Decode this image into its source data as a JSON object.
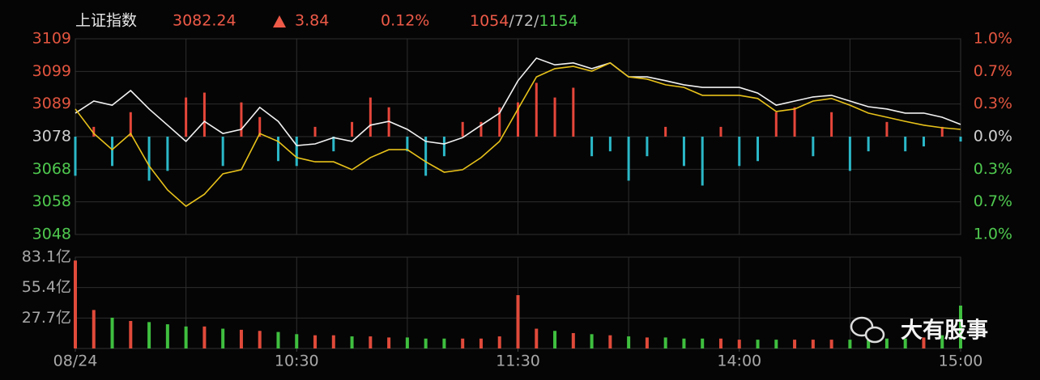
{
  "header": {
    "name": "上证指数",
    "price": 3082.24,
    "change": 3.84,
    "change_pct": "0.12%",
    "breadth": [
      "1054",
      "72",
      "1154"
    ],
    "separator": "/"
  },
  "watermark": "大有股事",
  "chart_data": [
    {
      "type": "line",
      "x": [
        0,
        5,
        10,
        15,
        20,
        25,
        30,
        35,
        40,
        45,
        50,
        55,
        60,
        65,
        70,
        75,
        80,
        85,
        90,
        95,
        100,
        105,
        110,
        115,
        120,
        125,
        130,
        135,
        140,
        145,
        150,
        155,
        160,
        165,
        170,
        175,
        180,
        185,
        190,
        195,
        200,
        205,
        210,
        215,
        220,
        225,
        230,
        235,
        240
      ],
      "xlim": [
        0,
        240
      ],
      "ylim": [
        3047.62,
        3109.18
      ],
      "yticks": [
        {
          "value": 3109.18,
          "label": "3109"
        },
        {
          "value": 3098.92,
          "label": "3099"
        },
        {
          "value": 3088.66,
          "label": "3089"
        },
        {
          "value": 3078.4,
          "label": "3078"
        },
        {
          "value": 3068.14,
          "label": "3068"
        },
        {
          "value": 3057.88,
          "label": "3058"
        },
        {
          "value": 3047.62,
          "label": "3048"
        }
      ],
      "y2lim": [
        -1,
        1
      ],
      "y2ticks": [
        {
          "value": 1,
          "label": "1.0%"
        },
        {
          "value": 0.667,
          "label": "0.7%"
        },
        {
          "value": 0.333,
          "label": "0.3%"
        },
        {
          "value": 0,
          "label": "0.0%"
        },
        {
          "value": -0.333,
          "label": "0.3%"
        },
        {
          "value": -0.667,
          "label": "0.7%"
        },
        {
          "value": -1,
          "label": "1.0%"
        }
      ],
      "grid": true,
      "series": [
        {
          "color": "#f2f2f2",
          "values": [
            3085.8,
            3089.6,
            3088.3,
            3092.9,
            3087.1,
            3082.0,
            3076.9,
            3083.2,
            3079.4,
            3080.7,
            3087.6,
            3083.2,
            3075.6,
            3076.1,
            3078.1,
            3076.9,
            3082.0,
            3083.2,
            3080.7,
            3076.9,
            3076.1,
            3078.1,
            3082.0,
            3085.8,
            3096.0,
            3103.1,
            3101.0,
            3101.6,
            3099.8,
            3101.6,
            3097.2,
            3097.2,
            3096.0,
            3094.7,
            3093.9,
            3093.9,
            3093.9,
            3092.1,
            3088.3,
            3089.6,
            3090.9,
            3091.4,
            3089.6,
            3087.8,
            3087.1,
            3085.8,
            3085.8,
            3084.5,
            3082.24
          ]
        },
        {
          "color": "#e8c21a",
          "values": [
            3087.1,
            3079.4,
            3074.3,
            3079.4,
            3069.2,
            3061.6,
            3056.5,
            3060.3,
            3066.7,
            3068.0,
            3079.4,
            3076.9,
            3071.8,
            3070.5,
            3070.5,
            3068.0,
            3071.8,
            3074.3,
            3074.3,
            3070.5,
            3067.2,
            3068.0,
            3071.8,
            3076.9,
            3087.1,
            3097.2,
            3099.8,
            3100.5,
            3099.0,
            3101.6,
            3097.2,
            3096.5,
            3094.7,
            3093.9,
            3091.4,
            3091.4,
            3091.4,
            3090.4,
            3086.3,
            3087.1,
            3089.6,
            3090.4,
            3088.3,
            3085.8,
            3084.5,
            3083.2,
            3082.0,
            3081.2,
            3080.7
          ]
        },
        {
          "type": "bar",
          "axis": "y2",
          "colors": [
            "#e5463a",
            "#2bb8c8"
          ],
          "values": [
            -0.4,
            0.1,
            -0.3,
            0.25,
            -0.45,
            -0.35,
            0.4,
            0.45,
            -0.3,
            0.35,
            0.2,
            -0.25,
            -0.3,
            0.1,
            -0.15,
            0.15,
            0.4,
            0.3,
            -0.15,
            -0.4,
            -0.2,
            0.15,
            0.15,
            0.3,
            0.35,
            0.55,
            0.4,
            0.5,
            -0.2,
            -0.15,
            -0.45,
            -0.2,
            0.1,
            -0.3,
            -0.5,
            0.1,
            -0.3,
            -0.25,
            0.25,
            0.3,
            -0.2,
            0.25,
            -0.35,
            -0.15,
            0.15,
            -0.15,
            -0.1,
            0.1,
            -0.05
          ]
        }
      ]
    },
    {
      "type": "bar",
      "x": [
        0,
        5,
        10,
        15,
        20,
        25,
        30,
        35,
        40,
        45,
        50,
        55,
        60,
        65,
        70,
        75,
        80,
        85,
        90,
        95,
        100,
        105,
        110,
        115,
        120,
        125,
        130,
        135,
        140,
        145,
        150,
        155,
        160,
        165,
        170,
        175,
        180,
        185,
        190,
        195,
        200,
        205,
        210,
        215,
        220,
        225,
        230,
        235,
        240
      ],
      "xlim": [
        0,
        240
      ],
      "xticks": [
        {
          "value": 0,
          "label": "08/24"
        },
        {
          "value": 60,
          "label": "10:30"
        },
        {
          "value": 120,
          "label": "11:30"
        },
        {
          "value": 180,
          "label": "14:00"
        },
        {
          "value": 240,
          "label": "15:00"
        }
      ],
      "ylim": [
        0,
        83.1
      ],
      "yticks": [
        {
          "value": 83.1,
          "label": "83.1亿"
        },
        {
          "value": 55.4,
          "label": "55.4亿"
        },
        {
          "value": 27.7,
          "label": "27.7亿"
        }
      ],
      "colors": [
        "#e04a3a",
        "#3fbf3f"
      ],
      "values": [
        80,
        35,
        28,
        25,
        24,
        22,
        20,
        20,
        18,
        17,
        16,
        15,
        13,
        12,
        12,
        11,
        11,
        10,
        10,
        9,
        9,
        9,
        9,
        11,
        48.5,
        18,
        16,
        14,
        13,
        12,
        11,
        10,
        10,
        9,
        9,
        9,
        8,
        8,
        8,
        8,
        8,
        8,
        8,
        8,
        9,
        9,
        10,
        12,
        39
      ]
    }
  ]
}
